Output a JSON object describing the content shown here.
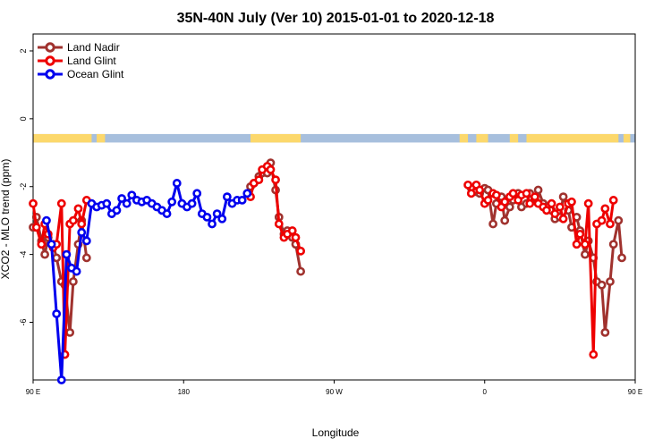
{
  "chart_data": {
    "type": "line",
    "title": "35N-40N July (Ver 10)   2015-01-01 to 2020-12-18",
    "xlabel": "Longitude",
    "ylabel": "XCO2 - MLO trend (ppm)",
    "xlim": [
      90,
      450
    ],
    "ylim": [
      -7.7,
      2.5
    ],
    "xticks": [
      {
        "value": 90,
        "label": "90 E"
      },
      {
        "value": 180,
        "label": "180"
      },
      {
        "value": 270,
        "label": "90 W"
      },
      {
        "value": 360,
        "label": "0"
      },
      {
        "value": 450,
        "label": "90 E"
      },
      {
        "value": 540,
        "label": "180"
      }
    ],
    "yticks": [
      {
        "value": 2,
        "label": "2"
      },
      {
        "value": 0,
        "label": "0"
      },
      {
        "value": -2,
        "label": "-2"
      },
      {
        "value": -4,
        "label": "-4"
      },
      {
        "value": -6,
        "label": "-6"
      }
    ],
    "grid": false,
    "legend_position": "top-left",
    "map_strip": {
      "y_top": -0.45,
      "y_bottom": -0.7,
      "ocean_color": "#a7bfdd",
      "land_color": "#fcd86c"
    },
    "series": [
      {
        "name": "Land Nadir",
        "color": "#a0322e",
        "segments": [
          {
            "x": [
              90,
              92,
              95,
              97,
              99,
              102,
              104,
              107,
              109,
              112,
              114,
              117,
              119,
              122,
              125,
              127,
              129,
              132
            ],
            "y": [
              -3.2,
              -2.9,
              -3.6,
              -4.0,
              -3.5,
              -3.7,
              -4.1,
              -4.8,
              -4.9,
              -6.3,
              -4.8,
              -3.7,
              -3.0,
              -4.1,
              null,
              null,
              null,
              null
            ]
          },
          {
            "x": [
              220,
              222,
              225,
              227,
              230,
              232,
              235,
              237,
              240,
              242,
              245,
              247,
              250,
              252
            ],
            "y": [
              -2.0,
              -1.9,
              -1.7,
              -1.6,
              -1.6,
              -1.3,
              -2.1,
              -2.9,
              -3.4,
              -3.3,
              -3.5,
              -3.7,
              -4.5,
              null
            ]
          },
          {
            "x": [
              350,
              352,
              355,
              357,
              360,
              362,
              365,
              367,
              370,
              372,
              375,
              377,
              380,
              382,
              385,
              387,
              390,
              392,
              395,
              397,
              400,
              402,
              405,
              407,
              410,
              412,
              415,
              417,
              420,
              422,
              425,
              427,
              430,
              432,
              435,
              437,
              440,
              442
            ],
            "y": [
              null,
              -2.05,
              -2.15,
              -2.2,
              -2.05,
              -2.1,
              -3.1,
              -2.5,
              -2.3,
              -3.0,
              -2.6,
              -2.4,
              -2.2,
              -2.6,
              -2.5,
              -2.2,
              -2.35,
              -2.1,
              -2.5,
              -2.6,
              -2.7,
              -2.95,
              -2.9,
              -2.3,
              -2.7,
              -3.2,
              -2.9,
              -3.3,
              -4.0,
              -3.6,
              -4.1,
              -4.8,
              -4.9,
              -6.3,
              -4.8,
              -3.7,
              -3.0,
              -4.1
            ]
          }
        ]
      },
      {
        "name": "Land Glint",
        "color": "#ee0000",
        "segments": [
          {
            "x": [
              90,
              92,
              95,
              97,
              99,
              102,
              104,
              107,
              109,
              112,
              114,
              117,
              119,
              122
            ],
            "y": [
              -2.5,
              -3.2,
              -3.7,
              -3.1,
              -3.4,
              -3.8,
              -3.7,
              -2.5,
              -6.95,
              -3.1,
              -3.0,
              -2.65,
              -3.1,
              -2.4
            ]
          },
          {
            "x": [
              220,
              222,
              225,
              227,
              230,
              232,
              235,
              237,
              240,
              242,
              245,
              247,
              250,
              252
            ],
            "y": [
              -2.3,
              -1.9,
              -1.8,
              -1.5,
              -1.4,
              -1.5,
              -1.8,
              -3.1,
              -3.5,
              -3.4,
              -3.3,
              -3.5,
              -3.9,
              null
            ]
          },
          {
            "x": [
              350,
              352,
              355,
              357,
              360,
              362,
              365,
              367,
              370,
              372,
              375,
              377,
              380,
              382,
              385,
              387,
              390,
              392,
              395,
              397,
              400,
              402,
              405,
              407,
              410,
              412,
              415,
              417,
              420,
              422,
              425,
              427,
              430,
              432,
              435,
              437,
              440,
              442
            ],
            "y": [
              -1.95,
              -2.2,
              -1.95,
              -2.1,
              -2.5,
              -2.4,
              -2.2,
              -2.25,
              -2.6,
              -2.45,
              -2.3,
              -2.2,
              -2.4,
              -2.25,
              -2.2,
              -2.5,
              -2.3,
              -2.5,
              -2.6,
              -2.7,
              -2.5,
              -2.8,
              -2.6,
              -2.95,
              -2.5,
              -2.45,
              -3.7,
              -3.4,
              -3.7,
              -2.5,
              -6.95,
              -3.1,
              -3.0,
              -2.65,
              -3.1,
              -2.4,
              null,
              null
            ]
          }
        ]
      },
      {
        "name": "Ocean Glint",
        "color": "#0000ee",
        "segments": [
          {
            "x": [
              98,
              101,
              104,
              107,
              110,
              113,
              116,
              119,
              122,
              125,
              128,
              131,
              134,
              137,
              140,
              143,
              146,
              149,
              152,
              155,
              158,
              161,
              164,
              167,
              170,
              173,
              176,
              179,
              182,
              185,
              188,
              191,
              194,
              197,
              200,
              203,
              206,
              209,
              212,
              215,
              218
            ],
            "y": [
              -3.0,
              -3.7,
              -5.75,
              -7.7,
              -4.0,
              -4.4,
              -4.5,
              -3.35,
              -3.6,
              -2.5,
              -2.6,
              -2.55,
              -2.5,
              -2.8,
              -2.7,
              -2.35,
              -2.5,
              -2.25,
              -2.4,
              -2.45,
              -2.4,
              -2.5,
              -2.6,
              -2.7,
              -2.8,
              -2.45,
              -1.9,
              -2.5,
              -2.6,
              -2.5,
              -2.2,
              -2.8,
              -2.9,
              -3.1,
              -2.8,
              -2.95,
              -2.3,
              -2.5,
              -2.4,
              -2.4,
              -2.2
            ]
          }
        ]
      }
    ]
  },
  "legend": {
    "items": [
      {
        "label": "Land Nadir",
        "color": "#a0322e"
      },
      {
        "label": "Land Glint",
        "color": "#ee0000"
      },
      {
        "label": "Ocean Glint",
        "color": "#0000ee"
      }
    ]
  }
}
